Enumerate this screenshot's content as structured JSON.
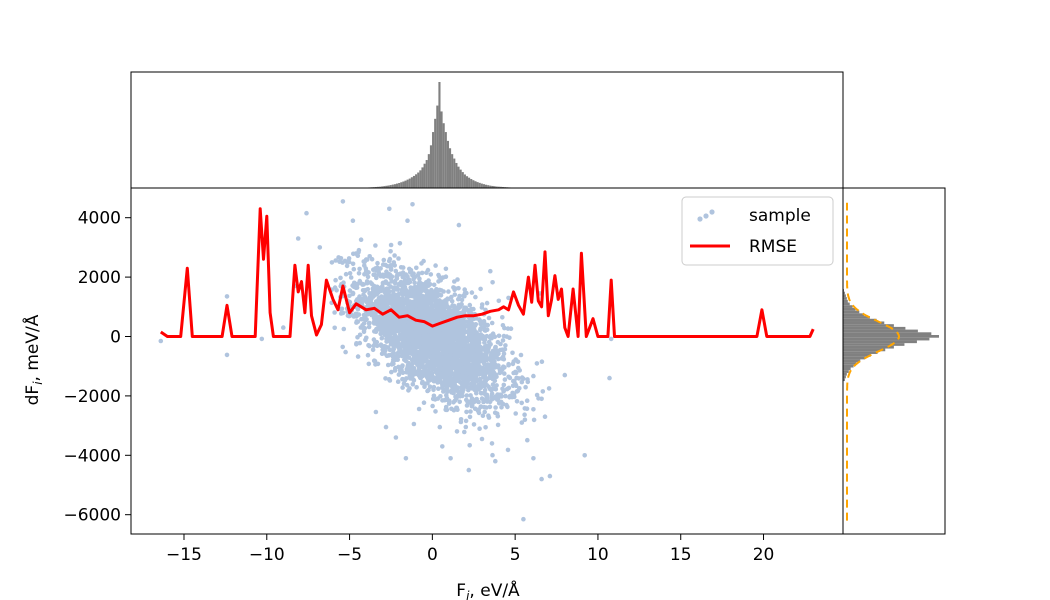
{
  "chart_data": {
    "type": "scatter",
    "title": "",
    "xlabel": "F",
    "xlabel_sub": "i",
    "xlabel_unit": ", eV/Å",
    "ylabel": "dF",
    "ylabel_sub": "i",
    "ylabel_unit": ", meV/Å",
    "xlim": [
      -18.2,
      24.8
    ],
    "ylim": [
      -6650,
      5000
    ],
    "x_ticks": [
      -15,
      -10,
      -5,
      0,
      5,
      10,
      15,
      20
    ],
    "x_tick_labels": [
      "−15",
      "−10",
      "−5",
      "0",
      "5",
      "10",
      "15",
      "20"
    ],
    "y_ticks": [
      -6000,
      -4000,
      -2000,
      0,
      2000,
      4000
    ],
    "y_tick_labels": [
      "−6000",
      "−4000",
      "−2000",
      "0",
      "2000",
      "4000"
    ],
    "grid": false,
    "legend": {
      "placement": "upper-right",
      "entries": [
        "sample",
        "RMSE"
      ]
    },
    "colors": {
      "sample": "#b0c4de",
      "rmse": "#ff0000",
      "hist": "#808080",
      "fit": "#ffa500"
    },
    "series": [
      {
        "name": "sample",
        "type": "scatter",
        "distribution": {
          "x_center": 0,
          "x_spread": 2.2,
          "slope_meV_per_eV": -300,
          "y_spread": 850,
          "count": 3600
        },
        "outliers": [
          [
            -16.4,
            -150
          ],
          [
            -12.4,
            1350
          ],
          [
            -12.4,
            -620
          ],
          [
            -10.3,
            -80
          ],
          [
            -7.6,
            4150
          ],
          [
            -8.1,
            3300
          ],
          [
            -8.3,
            1700
          ],
          [
            -9.0,
            300
          ],
          [
            -5.4,
            4550
          ],
          [
            -6.8,
            3000
          ],
          [
            -4.8,
            3900
          ],
          [
            -2.6,
            4300
          ],
          [
            -1.5,
            3900
          ],
          [
            -1.2,
            4450
          ],
          [
            1.6,
            3750
          ],
          [
            3.5,
            2200
          ],
          [
            3.6,
            -3600
          ],
          [
            3.8,
            -4200
          ],
          [
            2.2,
            -4500
          ],
          [
            7.1,
            -4700
          ],
          [
            9.2,
            -4000
          ],
          [
            10.7,
            -1400
          ],
          [
            10.8,
            -80
          ],
          [
            6.8,
            -2700
          ],
          [
            8.0,
            -1300
          ],
          [
            6.1,
            -4100
          ],
          [
            6.5,
            1450
          ],
          [
            4.6,
            1300
          ],
          [
            -2.2,
            -3400
          ],
          [
            -2.8,
            -3050
          ],
          [
            -1.6,
            -4100
          ],
          [
            0.6,
            -3700
          ],
          [
            1.1,
            -4100
          ],
          [
            5.4,
            -2900
          ],
          [
            6.6,
            -4800
          ],
          [
            5.5,
            -6150
          ]
        ]
      },
      {
        "name": "RMSE",
        "type": "line",
        "x": [
          -16.4,
          -16.0,
          -15.2,
          -14.8,
          -14.5,
          -12.7,
          -12.4,
          -12.1,
          -10.7,
          -10.4,
          -10.2,
          -10.0,
          -9.8,
          -9.6,
          -9.4,
          -8.6,
          -8.3,
          -8.1,
          -7.9,
          -7.7,
          -7.5,
          -7.3,
          -7.0,
          -6.7,
          -6.4,
          -6.0,
          -5.7,
          -5.4,
          -5.0,
          -4.6,
          -4.0,
          -3.5,
          -3.0,
          -2.5,
          -2.0,
          -1.5,
          -1.0,
          -0.5,
          0.0,
          0.5,
          1.0,
          1.5,
          2.0,
          2.5,
          3.0,
          3.5,
          4.0,
          4.3,
          4.6,
          4.9,
          5.2,
          5.5,
          5.8,
          6.0,
          6.2,
          6.4,
          6.6,
          6.8,
          7.0,
          7.2,
          7.4,
          7.6,
          7.8,
          8.0,
          8.2,
          8.5,
          8.8,
          9.0,
          9.3,
          9.7,
          10.0,
          10.3,
          10.6,
          10.8,
          11.0,
          19.6,
          19.9,
          20.2,
          22.8,
          23.0
        ],
        "values": [
          150,
          0,
          0,
          2300,
          0,
          0,
          1050,
          0,
          0,
          4300,
          2600,
          4050,
          800,
          0,
          0,
          0,
          2400,
          1500,
          1850,
          800,
          2400,
          700,
          50,
          400,
          1900,
          1250,
          900,
          1700,
          800,
          1100,
          900,
          950,
          750,
          900,
          650,
          700,
          550,
          500,
          350,
          450,
          550,
          650,
          700,
          700,
          750,
          850,
          900,
          1000,
          900,
          1500,
          1050,
          750,
          2000,
          1150,
          2400,
          1200,
          1000,
          2850,
          700,
          1250,
          2050,
          1250,
          1600,
          300,
          0,
          1600,
          0,
          2800,
          0,
          600,
          0,
          0,
          0,
          1900,
          0,
          0,
          900,
          0,
          0,
          250
        ]
      }
    ],
    "marginals": {
      "top_histogram": {
        "bin_edges_range": [
          -4.5,
          5.1
        ],
        "bin_count": 75,
        "counts": [
          1,
          2,
          2,
          3,
          3,
          4,
          5,
          6,
          7,
          8,
          9,
          11,
          13,
          15,
          17,
          20,
          23,
          26,
          30,
          34,
          39,
          44,
          50,
          57,
          64,
          73,
          82,
          93,
          105,
          120,
          140,
          165,
          190,
          230,
          290,
          380,
          470,
          560,
          720,
          520,
          440,
          380,
          320,
          270,
          230,
          200,
          170,
          145,
          125,
          108,
          92,
          80,
          70,
          61,
          53,
          46,
          40,
          35,
          30,
          26,
          22,
          19,
          16,
          14,
          12,
          10,
          9,
          8,
          7,
          6,
          5,
          4,
          3,
          3,
          2
        ]
      },
      "right_histogram": {
        "range_y": [
          -1500,
          1600
        ],
        "bin_count": 34,
        "counts": [
          2,
          3,
          4,
          6,
          8,
          11,
          14,
          18,
          23,
          29,
          36,
          44,
          53,
          64,
          77,
          90,
          100,
          92,
          78,
          65,
          53,
          43,
          35,
          28,
          22,
          17,
          13,
          10,
          7,
          5,
          4,
          3,
          2,
          1
        ]
      },
      "right_fit": {
        "type": "gaussian",
        "mean": 0,
        "sigma": 500,
        "y_range": [
          -6200,
          4500
        ],
        "style": "dashed"
      }
    }
  }
}
